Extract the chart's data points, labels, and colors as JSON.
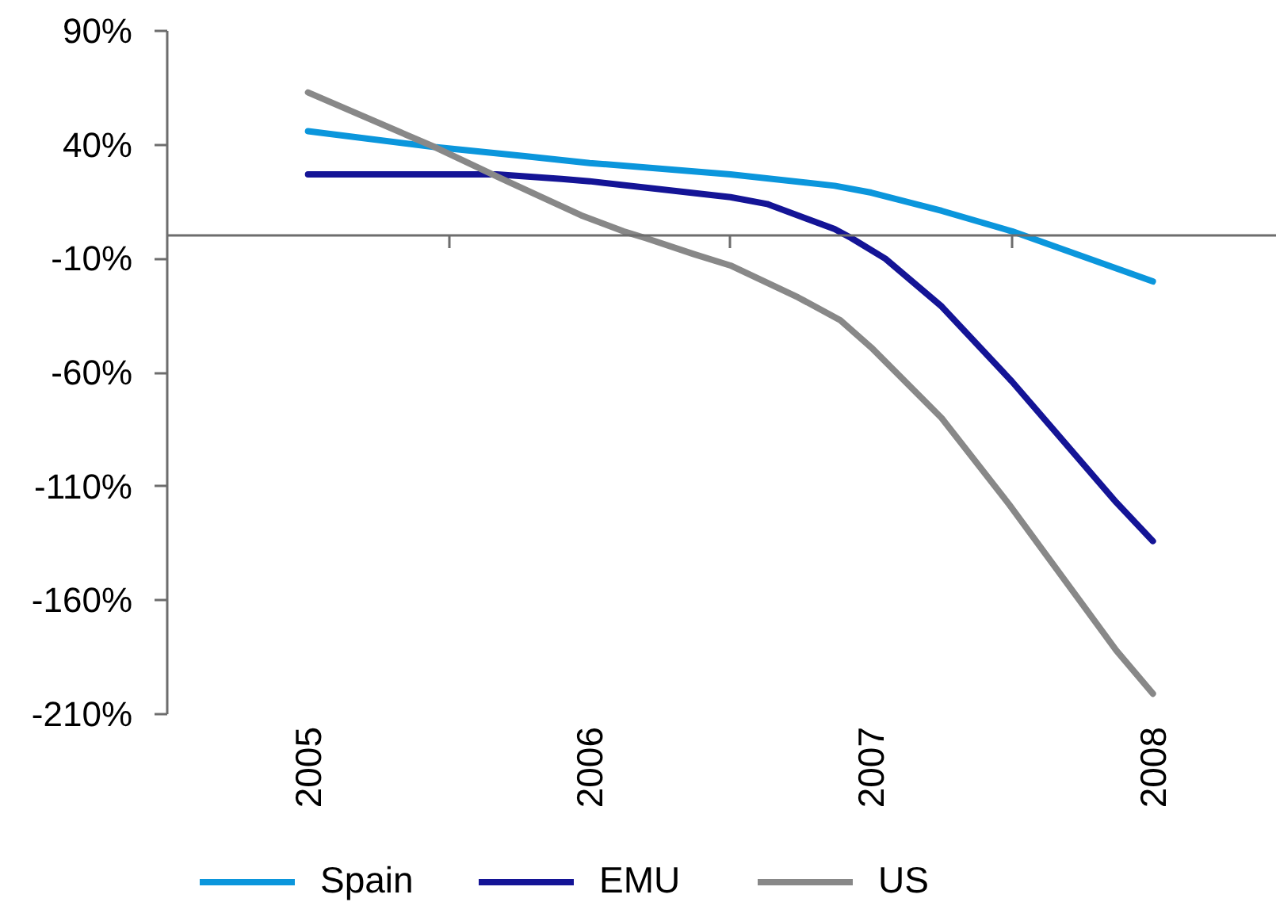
{
  "chart_data": {
    "type": "line",
    "xlim": [
      2004.5,
      2008.44
    ],
    "xticks": [
      2005,
      {
        "value": 2005.5,
        "label": null
      },
      2006,
      {
        "value": 2006.5,
        "label": null
      },
      2007,
      {
        "value": 2007.5,
        "label": null
      },
      2008
    ],
    "ylim": [
      -210,
      90
    ],
    "yticks": [
      {
        "value": 90,
        "label": "90%"
      },
      {
        "value": 40,
        "label": "40%"
      },
      {
        "value": -10,
        "label": "-10%"
      },
      {
        "value": -60,
        "label": "-60%"
      },
      {
        "value": -110,
        "label": "-110%"
      },
      {
        "value": -160,
        "label": "-160%"
      },
      {
        "value": -210,
        "label": "-210%"
      }
    ],
    "legend": "bottom",
    "series": [
      {
        "name": "Spain",
        "color": "#0b96dc",
        "x": [
          2005,
          2005.45,
          2005.77,
          2006,
          2006.5,
          2006.87,
          2007,
          2007.25,
          2007.5,
          2008
        ],
        "values": [
          46,
          39,
          35,
          32,
          27,
          22,
          19,
          11,
          2,
          -20
        ]
      },
      {
        "name": "EMU",
        "color": "#141496",
        "x": [
          2005,
          2005.67,
          2005.9,
          2006,
          2006.5,
          2006.63,
          2006.87,
          2006.93,
          2007.05,
          2007.25,
          2007.5,
          2007.87,
          2008
        ],
        "values": [
          27,
          27,
          25,
          24,
          17,
          14,
          3,
          -1,
          -10,
          -31,
          -64,
          -117,
          -134
        ]
      },
      {
        "name": "US",
        "color": "#888888",
        "x": [
          2005,
          2005.45,
          2005.69,
          2005.97,
          2006.12,
          2006.2,
          2006.37,
          2006.5,
          2006.74,
          2006.89,
          2007,
          2007.25,
          2007.49,
          2007.87,
          2008
        ],
        "values": [
          63,
          39,
          25,
          9,
          2,
          -1,
          -8,
          -13,
          -27,
          -37,
          -49,
          -80,
          -118,
          -182,
          -201
        ]
      }
    ]
  }
}
